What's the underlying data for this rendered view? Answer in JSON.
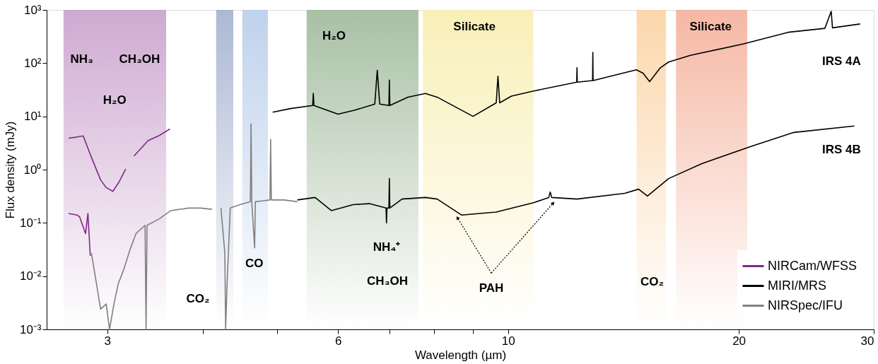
{
  "chart_data": {
    "type": "line",
    "xlabel": "Wavelength (µm)",
    "ylabel": "Flux density (mJy)",
    "log": "xy",
    "grid": false,
    "legend": "bottom right",
    "line_style": "solid",
    "marker": "none",
    "xlim": [
      2.5,
      30
    ],
    "ylim": [
      0.001,
      1000
    ],
    "xticks": [
      3,
      {
        "value": 4,
        "label": null
      },
      {
        "value": 5,
        "label": null
      },
      6,
      {
        "value": 7,
        "label": null
      },
      {
        "value": 8,
        "label": null
      },
      {
        "value": 9,
        "label": null
      },
      10,
      20,
      30
    ],
    "yticks": [
      {
        "value": 0.001,
        "label": "10⁻³"
      },
      {
        "value": 0.01,
        "label": "10⁻²"
      },
      {
        "value": 0.1,
        "label": "10⁻¹"
      },
      {
        "value": 1,
        "label": "10⁰"
      },
      {
        "value": 10,
        "label": "10¹"
      },
      {
        "value": 100,
        "label": "10²"
      },
      {
        "value": 1000,
        "label": "10³"
      }
    ],
    "bands": [
      {
        "axis": "x",
        "from": 2.63,
        "to": 3.58,
        "color": "#c9a0cc"
      },
      {
        "axis": "x",
        "from": 4.16,
        "to": 4.38,
        "color": "#a3b0cf"
      },
      {
        "axis": "x",
        "from": 4.5,
        "to": 4.86,
        "color": "#b8cdea"
      },
      {
        "axis": "x",
        "from": 5.46,
        "to": 7.64,
        "color": "#9fb99a"
      },
      {
        "axis": "x",
        "from": 7.74,
        "to": 10.79,
        "color": "#f8eeb0"
      },
      {
        "axis": "x",
        "from": 14.71,
        "to": 16.07,
        "color": "#fbd3a3"
      },
      {
        "axis": "x",
        "from": 16.56,
        "to": 20.51,
        "color": "#f5b09a"
      }
    ],
    "series": [
      {
        "name": "NIRCam/WFSS",
        "color": "#7f2a86",
        "x": [
          2.67,
          2.74,
          2.79,
          2.86,
          2.94,
          2.99,
          3.05,
          3.11,
          3.17,
          null,
          3.25,
          3.39,
          3.51,
          3.62,
          null,
          2.67,
          2.74,
          2.76,
          2.81,
          2.83,
          2.85
        ],
        "values": [
          3.9,
          4.1,
          4.3,
          1.7,
          0.64,
          0.46,
          0.39,
          0.6,
          1.03,
          null,
          1.8,
          3.5,
          4.4,
          5.8,
          null,
          0.15,
          0.14,
          0.13,
          0.063,
          0.15,
          0.024
        ]
      },
      {
        "name": "MIRI/MRS",
        "color": "#000000",
        "x": [
          4.93,
          5.2,
          5.56,
          5.57,
          5.58,
          5.85,
          6.0,
          6.3,
          6.7,
          6.75,
          6.8,
          6.99,
          7.0,
          7.01,
          7.4,
          7.8,
          8.08,
          9.0,
          9.65,
          9.7,
          9.75,
          10.1,
          10.8,
          12.29,
          12.3,
          12.31,
          12.89,
          12.9,
          12.91,
          14.7,
          15.0,
          15.3,
          15.8,
          16.2,
          17.3,
          20.3,
          23.2,
          25.9,
          26.4,
          26.5,
          28.8,
          null,
          5.31,
          5.6,
          5.88,
          6.28,
          6.59,
          6.93,
          6.94,
          6.95,
          6.99,
          7.0,
          7.01,
          7.27,
          7.8,
          8.08,
          8.7,
          9.65,
          10.8,
          11.3,
          11.35,
          11.4,
          12.3,
          14.2,
          14.8,
          15.2,
          16.2,
          17.9,
          20.7,
          23.6,
          28.3
        ],
        "values": [
          12,
          14,
          16,
          27,
          16,
          12.5,
          11,
          13,
          17,
          73,
          17,
          16,
          48,
          16,
          23,
          27,
          23,
          10,
          18,
          57,
          18,
          24,
          30,
          44,
          82,
          44,
          47,
          160,
          47,
          75,
          65,
          45,
          82,
          105,
          140,
          230,
          380,
          450,
          940,
          460,
          545,
          null,
          0.27,
          0.3,
          0.17,
          0.22,
          0.23,
          0.19,
          0.1,
          0.19,
          0.19,
          0.68,
          0.19,
          0.28,
          0.3,
          0.28,
          0.14,
          0.16,
          0.24,
          0.3,
          0.38,
          0.3,
          0.28,
          0.36,
          0.43,
          0.32,
          0.68,
          1.3,
          2.7,
          5.0,
          6.6
        ]
      },
      {
        "name": "NIRSpec/IFU",
        "color": "#808080",
        "x": [
          2.86,
          2.9,
          2.94,
          2.99,
          3.02,
          3.06,
          3.1,
          3.15,
          3.21,
          3.27,
          3.36,
          3.37,
          3.38,
          3.51,
          3.63,
          3.83,
          3.97,
          4.11,
          null,
          4.22,
          4.27,
          4.28,
          4.3,
          4.34,
          4.47,
          4.61,
          4.62,
          4.63,
          4.67,
          4.68,
          4.8,
          4.89,
          4.9,
          4.91,
          5.1,
          5.31
        ],
        "values": [
          0.027,
          0.008,
          0.0024,
          0.003,
          0.001,
          0.003,
          0.0072,
          0.013,
          0.031,
          0.063,
          0.09,
          0.001,
          0.09,
          0.12,
          0.17,
          0.19,
          0.19,
          0.18,
          null,
          0.19,
          0.027,
          0.001,
          0.008,
          0.19,
          0.22,
          0.25,
          7.2,
          0.25,
          0.034,
          0.25,
          0.26,
          0.27,
          3.7,
          0.27,
          0.27,
          0.25
        ]
      }
    ],
    "annotations": [
      "NH₃",
      "CH₃OH",
      "H₂O",
      "CO₂",
      "CO",
      "H₂O",
      "NH₄⁺",
      "CH₃OH",
      "Silicate",
      "Silicate",
      "CO₂",
      "IRS 4A",
      "IRS 4B",
      "PAH"
    ]
  }
}
